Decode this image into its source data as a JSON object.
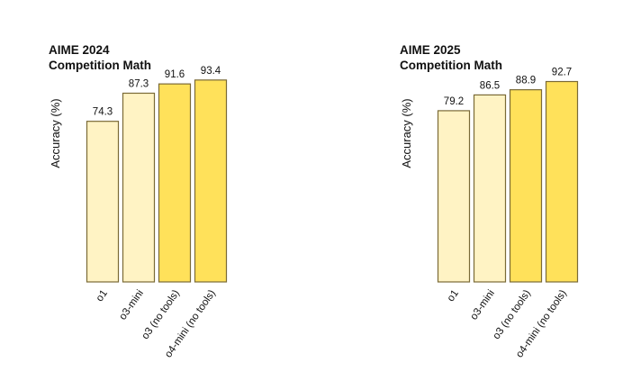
{
  "chart_data": [
    {
      "type": "bar",
      "title": "AIME 2024",
      "subtitle": "Competition Math",
      "ylabel": "Accuracy (%)",
      "xlabel": "",
      "categories": [
        "o1",
        "o3-mini",
        "o3 (no tools)",
        "o4-mini (no tools)"
      ],
      "values": [
        74.3,
        87.3,
        91.6,
        93.4
      ],
      "colors": [
        "#FFF3C4",
        "#FFF3C4",
        "#FFE15A",
        "#FFE15A"
      ],
      "ylim": [
        0,
        100
      ],
      "grid": false,
      "legend": "none"
    },
    {
      "type": "bar",
      "title": "AIME 2025",
      "subtitle": "Competition Math",
      "ylabel": "Accuracy (%)",
      "xlabel": "",
      "categories": [
        "o1",
        "o3-mini",
        "o3 (no tools)",
        "o4-mini (no tools)"
      ],
      "values": [
        79.2,
        86.5,
        88.9,
        92.7
      ],
      "colors": [
        "#FFF3C4",
        "#FFF3C4",
        "#FFE15A",
        "#FFE15A"
      ],
      "ylim": [
        0,
        100
      ],
      "grid": false,
      "legend": "none"
    }
  ],
  "style": {
    "bar_stroke": "#7A6A36",
    "text_color": "#111111"
  }
}
